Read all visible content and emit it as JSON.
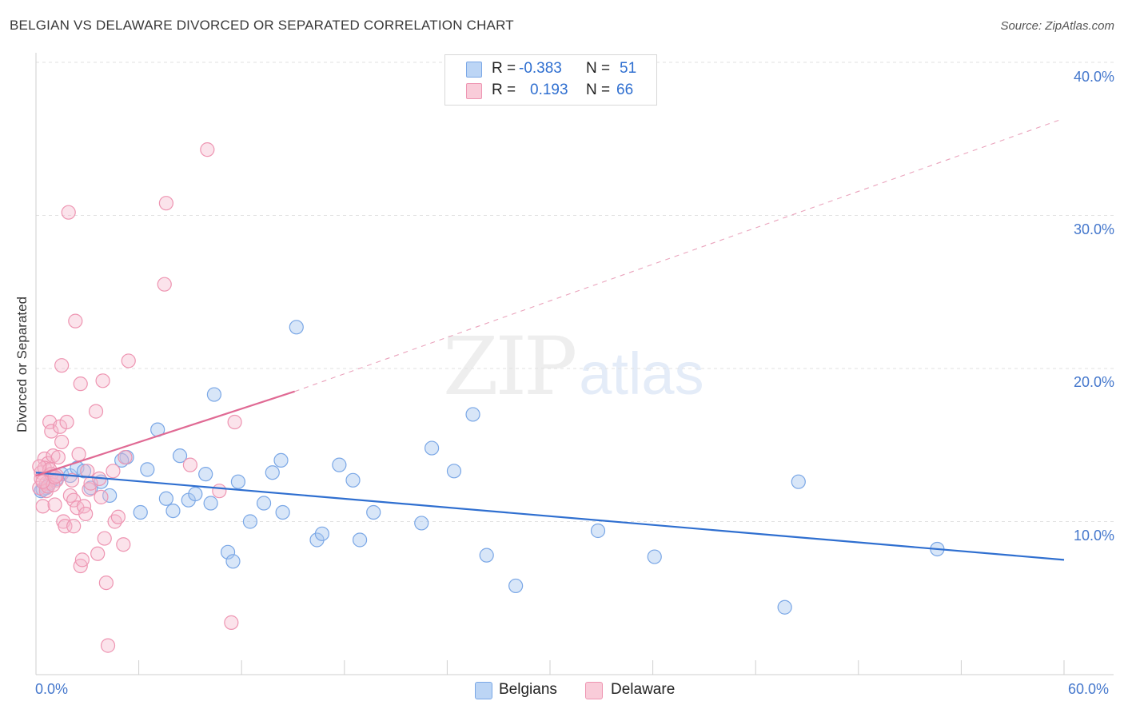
{
  "header": {
    "title": "BELGIAN VS DELAWARE DIVORCED OR SEPARATED CORRELATION CHART",
    "source": "Source: ZipAtlas.com"
  },
  "watermark": {
    "zip": "ZIP",
    "atlas": "atlas"
  },
  "legend": {
    "rows": [
      {
        "r_label": "R =",
        "r_value": "-0.383",
        "n_label": "N =",
        "n_value": "51",
        "color": "#a8c8f0"
      },
      {
        "r_label": "R =",
        "r_value": "0.193",
        "n_label": "N =",
        "n_value": "66",
        "color": "#f5b8cc"
      }
    ]
  },
  "bottom_legend": {
    "belgians": "Belgians",
    "delaware": "Delaware"
  },
  "axis": {
    "y_label": "Divorced or Separated",
    "y_ticks": [
      "40.0%",
      "30.0%",
      "20.0%",
      "10.0%"
    ],
    "x_min_label": "0.0%",
    "x_max_label": "60.0%"
  },
  "chart_data": {
    "type": "scatter",
    "title": "BELGIAN VS DELAWARE DIVORCED OR SEPARATED CORRELATION CHART",
    "xlabel": "",
    "ylabel": "Divorced or Separated",
    "xlim": [
      0,
      60
    ],
    "ylim": [
      0,
      42
    ],
    "y_ticks": [
      10,
      20,
      30,
      40
    ],
    "grid": true,
    "legend": "top-center",
    "colors": {
      "belgians": "#2f6fd0",
      "delaware": "#e06a94"
    },
    "series": [
      {
        "name": "Belgians",
        "r": -0.383,
        "n": 51,
        "trend": {
          "x": [
            0,
            60
          ],
          "y": [
            13.2,
            7.5
          ]
        },
        "points": [
          [
            0.3,
            12.0
          ],
          [
            0.6,
            12.2
          ],
          [
            0.8,
            12.5
          ],
          [
            1.2,
            12.8
          ],
          [
            1.5,
            13.1
          ],
          [
            2.0,
            13.0
          ],
          [
            2.4,
            13.5
          ],
          [
            2.8,
            13.3
          ],
          [
            3.2,
            12.2
          ],
          [
            3.8,
            12.6
          ],
          [
            4.3,
            11.7
          ],
          [
            5.3,
            14.2
          ],
          [
            5.0,
            14.0
          ],
          [
            6.1,
            10.6
          ],
          [
            6.5,
            13.4
          ],
          [
            7.1,
            16.0
          ],
          [
            7.6,
            11.5
          ],
          [
            8.0,
            10.7
          ],
          [
            8.4,
            14.3
          ],
          [
            8.9,
            11.4
          ],
          [
            9.3,
            11.8
          ],
          [
            9.9,
            13.1
          ],
          [
            10.2,
            11.2
          ],
          [
            10.4,
            18.3
          ],
          [
            11.2,
            8.0
          ],
          [
            11.5,
            7.4
          ],
          [
            11.8,
            12.6
          ],
          [
            12.5,
            10.0
          ],
          [
            13.3,
            11.2
          ],
          [
            13.8,
            13.2
          ],
          [
            14.3,
            14.0
          ],
          [
            14.4,
            10.6
          ],
          [
            15.2,
            22.7
          ],
          [
            16.4,
            8.8
          ],
          [
            16.7,
            9.2
          ],
          [
            17.7,
            13.7
          ],
          [
            18.5,
            12.7
          ],
          [
            18.9,
            8.8
          ],
          [
            19.7,
            10.6
          ],
          [
            22.5,
            9.9
          ],
          [
            23.1,
            14.8
          ],
          [
            24.4,
            13.3
          ],
          [
            25.5,
            17.0
          ],
          [
            26.3,
            7.8
          ],
          [
            28.0,
            5.8
          ],
          [
            32.8,
            9.4
          ],
          [
            36.1,
            7.7
          ],
          [
            43.7,
            4.4
          ],
          [
            44.5,
            12.6
          ],
          [
            52.6,
            8.2
          ],
          [
            0.4,
            12.1
          ]
        ]
      },
      {
        "name": "Delaware",
        "r": 0.193,
        "n": 66,
        "trend": {
          "x": [
            0,
            15.1
          ],
          "y": [
            13.0,
            18.5
          ],
          "dashed_extension": {
            "x": [
              15.1,
              59.9
            ],
            "y": [
              18.5,
              36.3
            ]
          }
        },
        "points": [
          [
            0.2,
            12.2
          ],
          [
            0.3,
            13.2
          ],
          [
            0.4,
            11.0
          ],
          [
            0.5,
            14.1
          ],
          [
            0.6,
            12.5
          ],
          [
            0.7,
            13.8
          ],
          [
            0.8,
            16.5
          ],
          [
            0.9,
            15.9
          ],
          [
            1.0,
            14.3
          ],
          [
            1.1,
            11.1
          ],
          [
            1.2,
            12.7
          ],
          [
            1.3,
            14.2
          ],
          [
            1.4,
            16.2
          ],
          [
            1.5,
            15.2
          ],
          [
            1.5,
            20.2
          ],
          [
            1.6,
            10.0
          ],
          [
            1.7,
            9.7
          ],
          [
            1.8,
            16.5
          ],
          [
            1.9,
            30.2
          ],
          [
            2.0,
            11.7
          ],
          [
            2.1,
            12.7
          ],
          [
            2.2,
            9.7
          ],
          [
            2.2,
            11.4
          ],
          [
            2.3,
            23.1
          ],
          [
            2.4,
            10.9
          ],
          [
            2.5,
            14.4
          ],
          [
            2.6,
            19.0
          ],
          [
            2.6,
            7.1
          ],
          [
            2.7,
            7.5
          ],
          [
            2.8,
            11.0
          ],
          [
            2.9,
            10.5
          ],
          [
            3.0,
            13.3
          ],
          [
            3.1,
            12.1
          ],
          [
            3.2,
            12.5
          ],
          [
            3.5,
            17.2
          ],
          [
            3.6,
            7.9
          ],
          [
            3.7,
            12.8
          ],
          [
            3.8,
            11.6
          ],
          [
            3.9,
            19.2
          ],
          [
            4.0,
            8.9
          ],
          [
            4.1,
            6.0
          ],
          [
            4.2,
            1.9
          ],
          [
            4.5,
            13.3
          ],
          [
            4.6,
            10.0
          ],
          [
            4.8,
            10.3
          ],
          [
            5.1,
            8.5
          ],
          [
            5.2,
            14.2
          ],
          [
            5.4,
            20.5
          ],
          [
            7.5,
            25.5
          ],
          [
            7.6,
            30.8
          ],
          [
            9.0,
            13.7
          ],
          [
            10.0,
            34.3
          ],
          [
            10.7,
            12.0
          ],
          [
            11.4,
            3.4
          ],
          [
            11.6,
            16.5
          ],
          [
            0.3,
            12.8
          ],
          [
            0.5,
            13.5
          ],
          [
            0.6,
            12.0
          ],
          [
            0.7,
            12.3
          ],
          [
            0.9,
            13.1
          ],
          [
            1.0,
            12.4
          ],
          [
            1.2,
            13.0
          ],
          [
            0.4,
            12.6
          ],
          [
            0.8,
            13.4
          ],
          [
            1.1,
            12.9
          ],
          [
            0.2,
            13.6
          ]
        ]
      }
    ]
  }
}
